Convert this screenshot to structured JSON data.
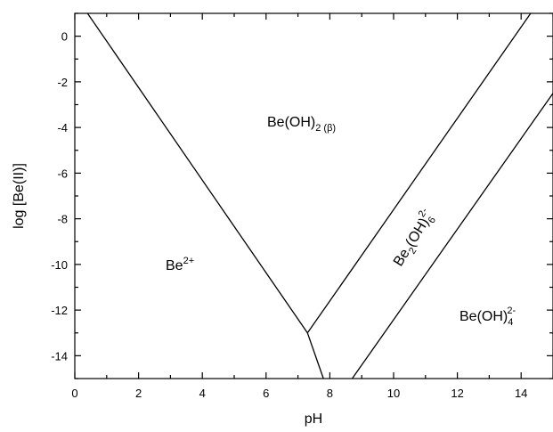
{
  "chart_data": {
    "type": "line",
    "xlabel": "pH",
    "ylabel": "log [Be(II)]",
    "xlim": [
      0,
      15
    ],
    "ylim": [
      -15,
      1
    ],
    "xticks": [
      "0",
      "2",
      "4",
      "6",
      "8",
      "10",
      "12",
      "14"
    ],
    "yticks": [
      "0",
      "-2",
      "-4",
      "-6",
      "-8",
      "-10",
      "-12",
      "-14"
    ],
    "grid": false,
    "series": [
      {
        "x": [
          0.4,
          7.3
        ],
        "y": [
          1,
          -13
        ]
      },
      {
        "x": [
          7.3,
          7.8
        ],
        "y": [
          -13,
          -15
        ]
      },
      {
        "x": [
          7.3,
          14.3
        ],
        "y": [
          -13,
          1
        ]
      },
      {
        "x": [
          8.7,
          15
        ],
        "y": [
          -15,
          -2.5
        ]
      }
    ],
    "regions": [
      {
        "base": "Be(OH)",
        "sub": "2 (β)",
        "sup": ""
      },
      {
        "base": "Be",
        "sub": "",
        "sup": "2+"
      },
      {
        "base": "Be",
        "sub": "2",
        "mid": "(OH)",
        "sub2": "6",
        "sup": "2-"
      },
      {
        "base": "Be(OH)",
        "sub": "4",
        "sup": "2-"
      }
    ]
  }
}
